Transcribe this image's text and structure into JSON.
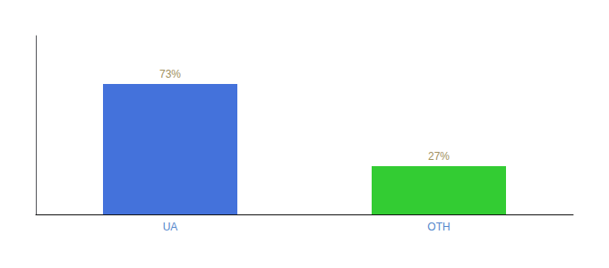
{
  "chart_data": {
    "type": "bar",
    "categories": [
      "UA",
      "OTH"
    ],
    "values": [
      73,
      27
    ],
    "value_labels": [
      "73%",
      "27%"
    ],
    "colors": [
      "#4472db",
      "#33cc33"
    ],
    "ylim": [
      0,
      100
    ],
    "data_labels": true,
    "tick_labels": "x",
    "grid": false
  }
}
